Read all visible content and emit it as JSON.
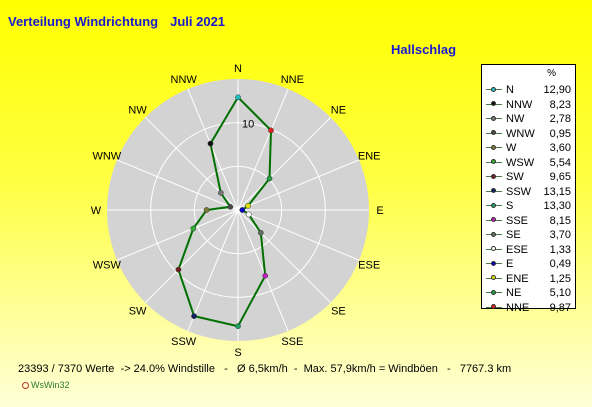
{
  "title": "Verteilung Windrichtung",
  "month": "Juli 2021",
  "station": "Hallschlag",
  "legend_header": "%",
  "footer": "23393 / 7370 Werte  -> 24.0% Windstille   -   Ø 6,5km/h  -  Max. 57,9km/h = Windböen   -   7767.3 km",
  "brand": "WsWin32",
  "colors": {
    "plate": "#d3d3d3",
    "grid": "#ffffff",
    "polyline": "#007000",
    "background_top": "#ffff00"
  },
  "chart_data": {
    "type": "radar",
    "title": "Verteilung Windrichtung",
    "ring_label": "10",
    "r_max": 15,
    "directions": [
      "N",
      "NNE",
      "NE",
      "ENE",
      "E",
      "ESE",
      "SE",
      "SSE",
      "S",
      "SSW",
      "SW",
      "WSW",
      "W",
      "WNW",
      "NW",
      "NNW"
    ],
    "values": [
      12.9,
      9.87,
      5.1,
      1.25,
      0.49,
      1.33,
      3.7,
      8.15,
      13.3,
      13.15,
      9.65,
      5.54,
      3.6,
      0.95,
      2.78,
      8.23
    ],
    "legend": [
      {
        "dir": "N",
        "value": "12,90",
        "color": "#20c0c0"
      },
      {
        "dir": "NNW",
        "value": "8,23",
        "color": "#111111"
      },
      {
        "dir": "NW",
        "value": "2,78",
        "color": "#777777"
      },
      {
        "dir": "WNW",
        "value": "0,95",
        "color": "#4a4a4a"
      },
      {
        "dir": "W",
        "value": "3,60",
        "color": "#7a7a30"
      },
      {
        "dir": "WSW",
        "value": "5,54",
        "color": "#30b030"
      },
      {
        "dir": "SW",
        "value": "9,65",
        "color": "#702020"
      },
      {
        "dir": "SSW",
        "value": "13,15",
        "color": "#102060"
      },
      {
        "dir": "S",
        "value": "13,30",
        "color": "#20a060"
      },
      {
        "dir": "SSE",
        "value": "8,15",
        "color": "#c020c0"
      },
      {
        "dir": "SE",
        "value": "3,70",
        "color": "#607060"
      },
      {
        "dir": "ESE",
        "value": "1,33",
        "color": "#ffffff"
      },
      {
        "dir": "E",
        "value": "0,49",
        "color": "#0000c0"
      },
      {
        "dir": "ENE",
        "value": "1,25",
        "color": "#e0e000"
      },
      {
        "dir": "NE",
        "value": "5,10",
        "color": "#20a040"
      },
      {
        "dir": "NNE",
        "value": "9,87",
        "color": "#e02020"
      }
    ]
  }
}
